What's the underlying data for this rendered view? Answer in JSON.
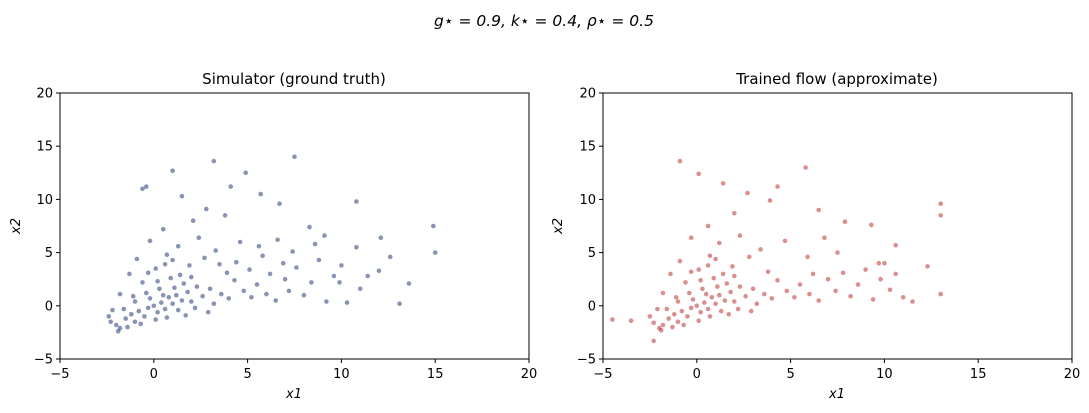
{
  "suptitle": "g⋆ = 0.9, k⋆ = 0.4, ρ⋆ = 0.5",
  "colors": {
    "left_points": "#14286a",
    "right_points": "#b22222",
    "axes": "#000000"
  },
  "chart_data": [
    {
      "type": "scatter",
      "title": "Simulator  (ground truth)",
      "xlabel": "x1",
      "ylabel": "x2",
      "xlim": [
        -5,
        20
      ],
      "ylim": [
        -5,
        20
      ],
      "xticks": [
        -5,
        0,
        5,
        10,
        15,
        20
      ],
      "yticks": [
        -5,
        0,
        5,
        10,
        15,
        20
      ],
      "grid": false,
      "series": [
        {
          "color": "#14286a",
          "points": [
            [
              -2.0,
              -1.8
            ],
            [
              -1.8,
              -2.1
            ],
            [
              -1.5,
              -1.2
            ],
            [
              -1.2,
              -0.8
            ],
            [
              -1.0,
              -1.5
            ],
            [
              -0.8,
              -0.5
            ],
            [
              -0.5,
              -1.0
            ],
            [
              -0.3,
              -0.2
            ],
            [
              0.0,
              0.0
            ],
            [
              0.2,
              -0.6
            ],
            [
              0.4,
              0.3
            ],
            [
              0.6,
              -0.3
            ],
            [
              0.8,
              0.8
            ],
            [
              1.0,
              0.2
            ],
            [
              1.2,
              1.0
            ],
            [
              1.5,
              0.5
            ],
            [
              1.8,
              1.3
            ],
            [
              2.0,
              0.4
            ],
            [
              0.3,
              1.6
            ],
            [
              -0.4,
              1.2
            ],
            [
              -1.0,
              0.4
            ],
            [
              -1.6,
              -0.3
            ],
            [
              -0.6,
              2.2
            ],
            [
              0.9,
              2.6
            ],
            [
              1.6,
              2.1
            ],
            [
              2.3,
              1.8
            ],
            [
              2.6,
              0.9
            ],
            [
              3.0,
              1.6
            ],
            [
              3.2,
              0.2
            ],
            [
              3.6,
              1.1
            ],
            [
              4.0,
              0.7
            ],
            [
              4.3,
              2.4
            ],
            [
              4.8,
              1.4
            ],
            [
              5.2,
              0.8
            ],
            [
              5.5,
              2.0
            ],
            [
              6.0,
              1.1
            ],
            [
              6.2,
              3.0
            ],
            [
              6.5,
              0.5
            ],
            [
              7.0,
              2.5
            ],
            [
              7.2,
              1.4
            ],
            [
              7.6,
              3.6
            ],
            [
              8.0,
              1.0
            ],
            [
              8.4,
              2.2
            ],
            [
              8.8,
              4.3
            ],
            [
              9.2,
              0.4
            ],
            [
              9.6,
              2.8
            ],
            [
              10.0,
              3.8
            ],
            [
              10.3,
              0.3
            ],
            [
              10.8,
              5.5
            ],
            [
              11.4,
              2.8
            ],
            [
              12.1,
              6.4
            ],
            [
              12.6,
              4.6
            ],
            [
              13.1,
              0.2
            ],
            [
              14.9,
              7.5
            ],
            [
              15.0,
              5.0
            ],
            [
              10.8,
              9.8
            ],
            [
              7.5,
              14.0
            ],
            [
              3.2,
              13.6
            ],
            [
              1.0,
              12.7
            ],
            [
              -0.4,
              11.2
            ],
            [
              -0.6,
              11.0
            ],
            [
              1.5,
              10.3
            ],
            [
              2.8,
              9.1
            ],
            [
              3.8,
              8.5
            ],
            [
              4.9,
              12.5
            ],
            [
              5.7,
              10.5
            ],
            [
              6.7,
              9.6
            ],
            [
              8.3,
              7.4
            ],
            [
              9.1,
              6.6
            ],
            [
              4.1,
              11.2
            ],
            [
              2.1,
              8.0
            ],
            [
              0.5,
              7.2
            ],
            [
              -0.2,
              6.1
            ],
            [
              1.3,
              5.6
            ],
            [
              2.4,
              6.4
            ],
            [
              3.3,
              5.2
            ],
            [
              4.6,
              6.0
            ],
            [
              5.8,
              4.7
            ],
            [
              6.6,
              6.2
            ],
            [
              7.4,
              5.1
            ],
            [
              -1.8,
              1.1
            ],
            [
              -2.2,
              -0.4
            ],
            [
              -2.4,
              -1.0
            ],
            [
              -1.3,
              3.0
            ],
            [
              -0.9,
              4.4
            ],
            [
              0.1,
              3.5
            ],
            [
              0.7,
              4.8
            ],
            [
              1.9,
              3.8
            ],
            [
              2.7,
              4.5
            ],
            [
              3.9,
              3.1
            ],
            [
              -2.3,
              -1.5
            ],
            [
              -1.9,
              -2.4
            ],
            [
              -1.4,
              -2.0
            ],
            [
              -0.7,
              -1.7
            ],
            [
              0.1,
              -1.3
            ],
            [
              0.7,
              -1.1
            ],
            [
              1.3,
              -0.4
            ],
            [
              1.7,
              -0.9
            ],
            [
              2.2,
              -0.2
            ],
            [
              2.9,
              -0.6
            ],
            [
              -1.1,
              0.9
            ],
            [
              -0.2,
              0.7
            ],
            [
              0.5,
              1.0
            ],
            [
              1.1,
              1.7
            ],
            [
              1.4,
              2.9
            ],
            [
              0.2,
              2.3
            ],
            [
              -0.3,
              3.1
            ],
            [
              0.6,
              3.9
            ],
            [
              1.0,
              4.3
            ],
            [
              2.0,
              2.7
            ],
            [
              3.5,
              3.9
            ],
            [
              4.4,
              4.1
            ],
            [
              5.1,
              3.4
            ],
            [
              5.6,
              5.6
            ],
            [
              6.9,
              4.0
            ],
            [
              8.6,
              5.8
            ],
            [
              9.9,
              2.2
            ],
            [
              11.0,
              1.6
            ],
            [
              12.0,
              3.3
            ],
            [
              13.6,
              2.1
            ]
          ]
        }
      ]
    },
    {
      "type": "scatter",
      "title": "Trained flow  (approximate)",
      "xlabel": "x1",
      "ylabel": "x2",
      "xlim": [
        -5,
        20
      ],
      "ylim": [
        -5,
        20
      ],
      "xticks": [
        -5,
        0,
        5,
        10,
        15,
        20
      ],
      "yticks": [
        -5,
        0,
        5,
        10,
        15,
        20
      ],
      "grid": false,
      "series": [
        {
          "color": "#b22222",
          "points": [
            [
              -4.5,
              -1.3
            ],
            [
              -3.5,
              -1.4
            ],
            [
              -2.3,
              -3.3
            ],
            [
              -2.0,
              -2.1
            ],
            [
              -1.8,
              -1.8
            ],
            [
              -1.5,
              -1.2
            ],
            [
              -1.2,
              -0.8
            ],
            [
              -1.0,
              -1.5
            ],
            [
              -0.8,
              -0.5
            ],
            [
              -0.5,
              -1.0
            ],
            [
              -0.3,
              -0.2
            ],
            [
              0.0,
              0.0
            ],
            [
              0.2,
              -0.6
            ],
            [
              0.4,
              0.3
            ],
            [
              0.6,
              -0.3
            ],
            [
              0.8,
              0.8
            ],
            [
              1.0,
              0.2
            ],
            [
              1.2,
              1.0
            ],
            [
              1.5,
              0.5
            ],
            [
              1.8,
              1.3
            ],
            [
              2.0,
              0.4
            ],
            [
              0.3,
              1.6
            ],
            [
              -0.4,
              1.2
            ],
            [
              -1.0,
              0.4
            ],
            [
              -1.6,
              -0.3
            ],
            [
              -0.6,
              2.2
            ],
            [
              0.9,
              2.6
            ],
            [
              1.6,
              2.1
            ],
            [
              2.3,
              1.8
            ],
            [
              2.6,
              0.9
            ],
            [
              3.0,
              1.6
            ],
            [
              3.2,
              0.2
            ],
            [
              3.6,
              1.1
            ],
            [
              4.0,
              0.7
            ],
            [
              4.3,
              2.4
            ],
            [
              4.8,
              1.4
            ],
            [
              5.2,
              0.8
            ],
            [
              5.5,
              2.0
            ],
            [
              6.0,
              1.1
            ],
            [
              6.2,
              3.0
            ],
            [
              6.5,
              0.5
            ],
            [
              7.0,
              2.5
            ],
            [
              7.4,
              1.4
            ],
            [
              7.8,
              3.1
            ],
            [
              8.2,
              0.9
            ],
            [
              8.6,
              2.0
            ],
            [
              9.0,
              3.4
            ],
            [
              9.4,
              0.6
            ],
            [
              9.8,
              2.5
            ],
            [
              10.0,
              4.0
            ],
            [
              10.3,
              1.5
            ],
            [
              10.6,
              3.0
            ],
            [
              11.0,
              0.8
            ],
            [
              11.5,
              0.4
            ],
            [
              12.3,
              3.7
            ],
            [
              13.0,
              9.6
            ],
            [
              13.0,
              8.5
            ],
            [
              13.0,
              1.1
            ],
            [
              10.6,
              5.7
            ],
            [
              9.7,
              4.0
            ],
            [
              -0.9,
              13.6
            ],
            [
              0.1,
              12.4
            ],
            [
              1.4,
              11.5
            ],
            [
              2.7,
              10.6
            ],
            [
              3.9,
              9.9
            ],
            [
              5.8,
              13.0
            ],
            [
              4.3,
              11.2
            ],
            [
              6.5,
              9.0
            ],
            [
              7.9,
              7.9
            ],
            [
              9.3,
              7.6
            ],
            [
              2.0,
              8.7
            ],
            [
              0.6,
              7.5
            ],
            [
              -0.3,
              6.4
            ],
            [
              1.2,
              5.9
            ],
            [
              2.3,
              6.6
            ],
            [
              3.4,
              5.3
            ],
            [
              4.7,
              6.1
            ],
            [
              5.9,
              4.6
            ],
            [
              6.8,
              6.4
            ],
            [
              7.5,
              5.0
            ],
            [
              -1.8,
              1.2
            ],
            [
              -2.1,
              -0.3
            ],
            [
              -2.5,
              -1.0
            ],
            [
              -1.4,
              3.0
            ],
            [
              -0.9,
              4.2
            ],
            [
              0.1,
              3.4
            ],
            [
              0.7,
              4.7
            ],
            [
              1.9,
              3.7
            ],
            [
              2.8,
              4.6
            ],
            [
              3.8,
              3.2
            ],
            [
              -2.3,
              -1.6
            ],
            [
              -1.9,
              -2.3
            ],
            [
              -1.3,
              -2.0
            ],
            [
              -0.7,
              -1.8
            ],
            [
              0.1,
              -1.4
            ],
            [
              0.7,
              -1.0
            ],
            [
              1.3,
              -0.5
            ],
            [
              1.7,
              -0.8
            ],
            [
              2.2,
              -0.3
            ],
            [
              2.9,
              -0.5
            ],
            [
              -1.1,
              0.8
            ],
            [
              -0.2,
              0.6
            ],
            [
              0.5,
              1.1
            ],
            [
              1.1,
              1.8
            ],
            [
              1.4,
              3.0
            ],
            [
              0.2,
              2.4
            ],
            [
              -0.3,
              3.2
            ],
            [
              0.6,
              3.8
            ],
            [
              1.0,
              4.4
            ],
            [
              2.0,
              2.8
            ]
          ]
        }
      ]
    }
  ]
}
